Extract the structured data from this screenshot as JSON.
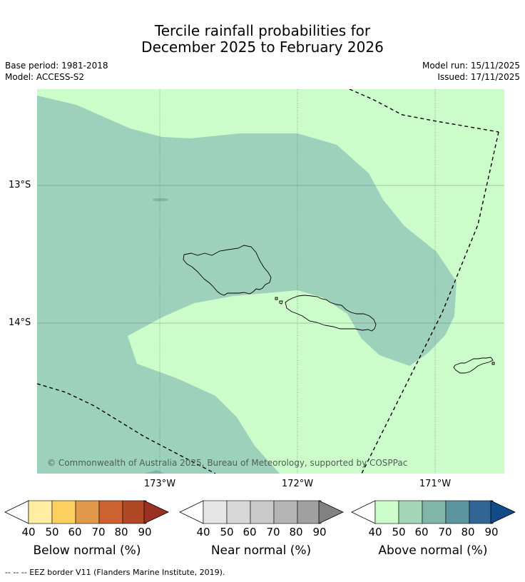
{
  "title": {
    "line1": "Tercile rainfall probabilities for",
    "line2": "December 2025 to February 2026"
  },
  "meta": {
    "base_period": "Base period: 1981-2018",
    "model": "Model: ACCESS-S2",
    "model_run": "Model run: 15/11/2025",
    "issued": "Issued: 17/11/2025"
  },
  "map": {
    "latitude_labels": [
      "13°S",
      "14°S"
    ],
    "longitude_labels": [
      "173°W",
      "172°W",
      "171°W"
    ],
    "copyright": "© Commonwealth of Australia 2025, Bureau of Meteorology, supported by COSPPac",
    "colors": {
      "ocean_fill": "#ccfcca",
      "above_50_60": "#9dd1bb",
      "above_60_70": "#80b6a8",
      "land_outline": "#000000",
      "eez_line": "#000000"
    }
  },
  "colorbars": [
    {
      "title": "Below normal (%)",
      "ticks": [
        "40",
        "50",
        "60",
        "70",
        "80",
        "90"
      ],
      "colors": [
        "#ffeea1",
        "#fecf61",
        "#e1984a",
        "#cc6230",
        "#b04826",
        "#993222"
      ]
    },
    {
      "title": "Near normal (%)",
      "ticks": [
        "40",
        "50",
        "60",
        "70",
        "80",
        "90"
      ],
      "colors": [
        "#e6e6e6",
        "#d7d7d7",
        "#c9c9c9",
        "#b4b4b4",
        "#a0a0a0",
        "#818181"
      ]
    },
    {
      "title": "Above normal (%)",
      "ticks": [
        "40",
        "50",
        "60",
        "70",
        "80",
        "90"
      ],
      "colors": [
        "#ccfcca",
        "#a2d6b6",
        "#80b6a8",
        "#5a95a0",
        "#306595",
        "#114c88"
      ]
    }
  ],
  "footer": "--  --  -- EEZ border V11 (Flanders Marine Institute, 2019)."
}
